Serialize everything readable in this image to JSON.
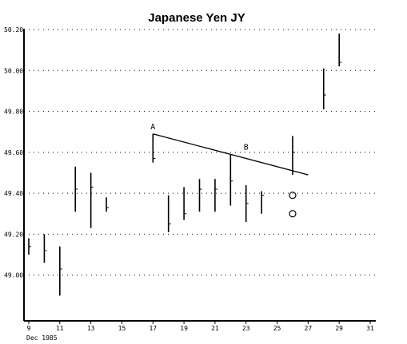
{
  "chart_data": {
    "type": "bar",
    "style": "ohlc",
    "title": "Japanese Yen JY",
    "xlabel": "",
    "ylabel": "",
    "x_sublabel": "Dec 1985",
    "xlim": [
      9,
      31
    ],
    "ylim": [
      48.8,
      50.2
    ],
    "y_ticks": [
      {
        "value": 49.0,
        "label": "49.00"
      },
      {
        "value": 49.2,
        "label": "49.20"
      },
      {
        "value": 49.4,
        "label": "49.40"
      },
      {
        "value": 49.6,
        "label": "49.60"
      },
      {
        "value": 49.8,
        "label": "49.80"
      },
      {
        "value": 50.0,
        "label": "50.00"
      },
      {
        "value": 50.2,
        "label": "50.20"
      }
    ],
    "x_ticks": [
      {
        "value": 9,
        "label": "9"
      },
      {
        "value": 11,
        "label": "11"
      },
      {
        "value": 13,
        "label": "13"
      },
      {
        "value": 15,
        "label": "15"
      },
      {
        "value": 17,
        "label": "17"
      },
      {
        "value": 19,
        "label": "19"
      },
      {
        "value": 21,
        "label": "21"
      },
      {
        "value": 23,
        "label": "23"
      },
      {
        "value": 25,
        "label": "25"
      },
      {
        "value": 27,
        "label": "27"
      },
      {
        "value": 29,
        "label": "29"
      },
      {
        "value": 31,
        "label": "31"
      }
    ],
    "grid": true,
    "bars": [
      {
        "x": 9,
        "high": 49.18,
        "low": 49.1,
        "close": 49.14
      },
      {
        "x": 10,
        "high": 49.2,
        "low": 49.06,
        "close": 49.12
      },
      {
        "x": 11,
        "high": 49.14,
        "low": 48.9,
        "close": 49.03
      },
      {
        "x": 12,
        "high": 49.53,
        "low": 49.31,
        "close": 49.42
      },
      {
        "x": 13,
        "high": 49.5,
        "low": 49.23,
        "close": 49.43
      },
      {
        "x": 14,
        "high": 49.38,
        "low": 49.31,
        "close": 49.33
      },
      {
        "x": 17,
        "high": 49.69,
        "low": 49.55,
        "close": 49.57
      },
      {
        "x": 18,
        "high": 49.39,
        "low": 49.21,
        "close": 49.25
      },
      {
        "x": 19,
        "high": 49.43,
        "low": 49.27,
        "close": 49.3
      },
      {
        "x": 20,
        "high": 49.47,
        "low": 49.31,
        "close": 49.42
      },
      {
        "x": 21,
        "high": 49.47,
        "low": 49.31,
        "close": 49.42
      },
      {
        "x": 22,
        "high": 49.59,
        "low": 49.34,
        "close": 49.46
      },
      {
        "x": 23,
        "high": 49.44,
        "low": 49.26,
        "close": 49.35
      },
      {
        "x": 24,
        "high": 49.41,
        "low": 49.3,
        "close": 49.39
      },
      {
        "x": 26,
        "high": 49.68,
        "low": 49.49,
        "close": 49.6
      },
      {
        "x": 28,
        "high": 50.01,
        "low": 49.81,
        "close": 49.88
      },
      {
        "x": 29,
        "high": 50.18,
        "low": 50.02,
        "close": 50.04
      }
    ],
    "trendline": {
      "from": {
        "x": 17,
        "y": 49.69
      },
      "to": {
        "x": 27,
        "y": 49.49
      }
    },
    "annotations": [
      {
        "label": "A",
        "x": 17,
        "y": 49.69
      },
      {
        "label": "B",
        "x": 23,
        "y": 49.59
      }
    ],
    "markers": [
      {
        "x": 26,
        "y": 49.39
      },
      {
        "x": 26,
        "y": 49.3
      }
    ]
  }
}
